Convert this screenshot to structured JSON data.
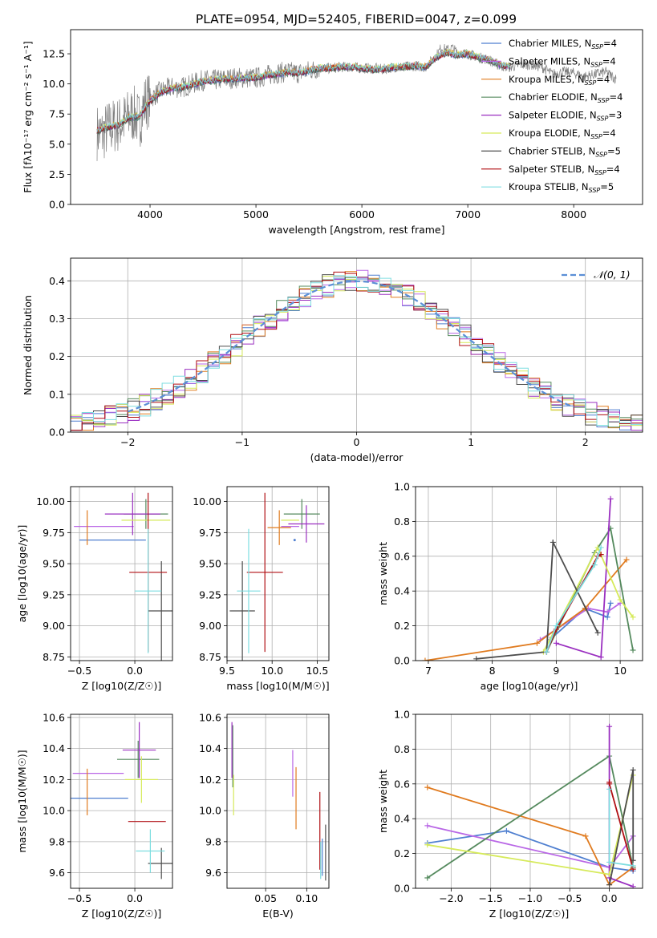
{
  "figure_title": "PLATE=0954, MJD=52405, FIBERID=0047, z=0.099",
  "model_colors": [
    "#4f7fd0",
    "#b967e6",
    "#e07b1f",
    "#558a5e",
    "#9a2fc0",
    "#d6ea5a",
    "#4d4d4d",
    "#b00f14",
    "#7ddde0"
  ],
  "chart_data": [
    {
      "id": "spectrum",
      "type": "line",
      "title": "PLATE=0954, MJD=52405, FIBERID=0047, z=0.099",
      "xlabel": "wavelength [Angstrom, rest frame]",
      "ylabel": "Flux [fλ10⁻¹⁷ erg cm⁻² s⁻¹ A⁻¹]",
      "xlim": [
        3250,
        8650
      ],
      "ylim": [
        0,
        14.5
      ],
      "xticks": [
        4000,
        5000,
        6000,
        7000,
        8000
      ],
      "yticks": [
        0.0,
        2.5,
        5.0,
        7.5,
        10.0,
        12.5
      ],
      "data_curve": {
        "name": "data",
        "color": "#808080",
        "x": [
          3500,
          3550,
          3600,
          3650,
          3700,
          3750,
          3800,
          3850,
          3900,
          3950,
          4000,
          4100,
          4200,
          4300,
          4400,
          4500,
          4600,
          4700,
          4800,
          4900,
          5000,
          5100,
          5200,
          5300,
          5400,
          5500,
          5600,
          5700,
          5800,
          5900,
          6000,
          6100,
          6200,
          6300,
          6400,
          6500,
          6600,
          6700,
          6750,
          6800,
          6850,
          6900,
          7000,
          7100,
          7200,
          7300,
          7400,
          7500,
          7600,
          7700,
          7800,
          7900,
          8000,
          8100,
          8200,
          8300,
          8400
        ],
        "y": [
          6.0,
          5.8,
          6.3,
          6.5,
          6.6,
          6.9,
          7.3,
          7.5,
          6.9,
          8.4,
          8.8,
          9.4,
          9.7,
          9.7,
          10.0,
          10.3,
          10.3,
          10.4,
          10.5,
          10.5,
          10.5,
          10.7,
          10.9,
          11.0,
          10.9,
          11.1,
          11.3,
          11.3,
          11.4,
          11.4,
          11.3,
          11.3,
          11.2,
          11.4,
          11.4,
          11.5,
          11.4,
          12.3,
          13.0,
          12.8,
          13.0,
          12.6,
          12.5,
          12.2,
          12.0,
          11.5,
          11.4,
          11.6,
          11.6,
          11.4,
          10.8,
          11.0,
          10.9,
          10.6,
          10.8,
          11.0,
          10.4
        ]
      },
      "model_curve": {
        "x": [
          3500,
          3600,
          3700,
          3800,
          3900,
          4000,
          4100,
          4200,
          4300,
          4400,
          4500,
          4600,
          4700,
          4800,
          4900,
          5000,
          5100,
          5200,
          5300,
          5400,
          5500,
          5600,
          5700,
          5800,
          5900,
          6000,
          6100,
          6200,
          6300,
          6400,
          6500,
          6600,
          6700,
          6800,
          6900,
          7000,
          7100,
          7200,
          7300,
          7400
        ],
        "y": [
          6.1,
          6.4,
          6.6,
          7.2,
          7.3,
          8.6,
          9.3,
          9.6,
          9.7,
          9.9,
          10.2,
          10.3,
          10.4,
          10.4,
          10.5,
          10.5,
          10.7,
          10.8,
          11.0,
          10.9,
          11.1,
          11.3,
          11.3,
          11.4,
          11.4,
          11.3,
          11.2,
          11.2,
          11.4,
          11.4,
          11.5,
          11.4,
          12.2,
          12.6,
          12.4,
          12.5,
          12.2,
          12.0,
          11.6,
          11.4
        ]
      },
      "series": [
        {
          "name": "Chabrier MILES, N",
          "sub": "SSP",
          "suffix": "=4"
        },
        {
          "name": "Salpeter MILES, N",
          "sub": "SSP",
          "suffix": "=4"
        },
        {
          "name": "Kroupa MILES, N",
          "sub": "SSP",
          "suffix": "=4"
        },
        {
          "name": "Chabrier ELODIE, N",
          "sub": "SSP",
          "suffix": "=4"
        },
        {
          "name": "Salpeter ELODIE, N",
          "sub": "SSP",
          "suffix": "=3"
        },
        {
          "name": "Kroupa ELODIE, N",
          "sub": "SSP",
          "suffix": "=4"
        },
        {
          "name": "Chabrier STELIB, N",
          "sub": "SSP",
          "suffix": "=5"
        },
        {
          "name": "Salpeter STELIB, N",
          "sub": "SSP",
          "suffix": "=4"
        },
        {
          "name": "Kroupa STELIB, N",
          "sub": "SSP",
          "suffix": "=5"
        }
      ],
      "legend": "right",
      "grid": false
    },
    {
      "id": "residuals",
      "type": "histogram",
      "xlabel": "(data-model)/error",
      "ylabel": "Normed distribution",
      "xlim": [
        -2.5,
        2.5
      ],
      "ylim": [
        0,
        0.46
      ],
      "xticks": [
        -2,
        -1,
        0,
        1,
        2
      ],
      "yticks": [
        0.0,
        0.1,
        0.2,
        0.3,
        0.4
      ],
      "bin_edges": [
        -2.5,
        -2.4,
        -2.3,
        -2.2,
        -2.1,
        -2.0,
        -1.9,
        -1.8,
        -1.7,
        -1.6,
        -1.5,
        -1.4,
        -1.3,
        -1.2,
        -1.1,
        -1.0,
        -0.9,
        -0.8,
        -0.7,
        -0.6,
        -0.5,
        -0.4,
        -0.3,
        -0.2,
        -0.1,
        0.0,
        0.1,
        0.2,
        0.3,
        0.4,
        0.5,
        0.6,
        0.7,
        0.8,
        0.9,
        1.0,
        1.1,
        1.2,
        1.3,
        1.4,
        1.5,
        1.6,
        1.7,
        1.8,
        1.9,
        2.0,
        2.1,
        2.2,
        2.3,
        2.4,
        2.5
      ],
      "gaussian": {
        "name": "𝒩(0, 1)",
        "color": "#5b8fd6",
        "mu": 0,
        "sigma": 1,
        "xlim": [
          -2.0,
          1.9
        ]
      },
      "legend": "top-right",
      "grid": true
    },
    {
      "id": "age_vs_Z",
      "type": "errorbar",
      "xlabel": "Z [log10(Z/Z☉)]",
      "ylabel": "age  [log10(age/yr)]",
      "xlim": [
        -0.58,
        0.34
      ],
      "ylim": [
        8.72,
        10.12
      ],
      "xticks": [
        -0.5,
        0.0
      ],
      "yticks": [
        8.75,
        9.0,
        9.25,
        9.5,
        9.75,
        10.0
      ],
      "points": [
        {
          "x": -0.2,
          "xerr": 0.3,
          "y": 9.69,
          "yerr": 0.0
        },
        {
          "x": -0.28,
          "xerr": 0.27,
          "y": 9.8,
          "yerr": 0.0
        },
        {
          "x": -0.43,
          "xerr": 0.0,
          "y": 9.79,
          "yerr": 0.14
        },
        {
          "x": 0.1,
          "xerr": 0.2,
          "y": 9.9,
          "yerr": 0.12
        },
        {
          "x": -0.02,
          "xerr": 0.25,
          "y": 9.9,
          "yerr": 0.17
        },
        {
          "x": 0.1,
          "xerr": 0.22,
          "y": 9.85,
          "yerr": 0.0
        },
        {
          "x": 0.24,
          "xerr": 0.12,
          "y": 9.12,
          "yerr": 0.4
        },
        {
          "x": 0.12,
          "xerr": 0.17,
          "y": 9.43,
          "yerr": 0.64
        },
        {
          "x": 0.12,
          "xerr": 0.12,
          "y": 9.28,
          "yerr": 0.5
        }
      ],
      "grid": true
    },
    {
      "id": "age_vs_mass",
      "type": "errorbar",
      "xlabel": "mass [log10(M/M☉)]",
      "ylabel": "",
      "xlim": [
        9.5,
        10.63
      ],
      "ylim": [
        8.72,
        10.12
      ],
      "xticks": [
        9.5,
        10.0,
        10.5
      ],
      "yticks": [
        8.75,
        9.0,
        9.25,
        9.5,
        9.75,
        10.0
      ],
      "points": [
        {
          "x": 10.25,
          "xerr": 0.0,
          "y": 9.69,
          "yerr": 0.0
        },
        {
          "x": 10.2,
          "xerr": 0.1,
          "y": 9.8,
          "yerr": 0.0
        },
        {
          "x": 10.08,
          "xerr": 0.13,
          "y": 9.79,
          "yerr": 0.14
        },
        {
          "x": 10.33,
          "xerr": 0.2,
          "y": 9.9,
          "yerr": 0.12
        },
        {
          "x": 10.38,
          "xerr": 0.2,
          "y": 9.82,
          "yerr": 0.15
        },
        {
          "x": 10.2,
          "xerr": 0.1,
          "y": 9.85,
          "yerr": 0.0
        },
        {
          "x": 9.67,
          "xerr": 0.14,
          "y": 9.12,
          "yerr": 0.4
        },
        {
          "x": 9.92,
          "xerr": 0.2,
          "y": 9.43,
          "yerr": 0.64
        },
        {
          "x": 9.74,
          "xerr": 0.13,
          "y": 9.28,
          "yerr": 0.5
        }
      ],
      "grid": true
    },
    {
      "id": "mass_weight_vs_age",
      "type": "line",
      "xlabel": "age  [log10(age/yr)]",
      "ylabel": "mass weight",
      "xlim": [
        6.8,
        10.35
      ],
      "ylim": [
        0,
        1.0
      ],
      "xticks": [
        7,
        8,
        9,
        10
      ],
      "yticks": [
        0.0,
        0.2,
        0.4,
        0.6,
        0.8,
        1.0
      ],
      "series": [
        {
          "x": [
            8.9,
            9.45,
            9.8,
            9.85
          ],
          "y": [
            0.12,
            0.3,
            0.25,
            0.33
          ]
        },
        {
          "x": [
            8.75,
            9.5,
            9.8,
            10.0
          ],
          "y": [
            0.12,
            0.3,
            0.28,
            0.33
          ]
        },
        {
          "x": [
            6.95,
            8.7,
            9.45,
            10.1
          ],
          "y": [
            0.0,
            0.1,
            0.3,
            0.58
          ]
        },
        {
          "x": [
            8.85,
            9.6,
            9.85,
            10.2
          ],
          "y": [
            0.05,
            0.62,
            0.76,
            0.06
          ]
        },
        {
          "x": [
            9.0,
            9.7,
            9.85
          ],
          "y": [
            0.1,
            0.02,
            0.93
          ]
        },
        {
          "x": [
            8.8,
            9.65,
            10.0,
            10.2
          ],
          "y": [
            0.05,
            0.65,
            0.35,
            0.25
          ]
        },
        {
          "x": [
            7.75,
            8.85,
            8.95,
            9.65
          ],
          "y": [
            0.01,
            0.05,
            0.68,
            0.16
          ]
        },
        {
          "x": [
            8.85,
            9.0,
            9.65,
            9.7
          ],
          "y": [
            0.05,
            0.18,
            0.6,
            0.61
          ]
        },
        {
          "x": [
            8.85,
            9.0,
            9.6,
            9.7
          ],
          "y": [
            0.05,
            0.2,
            0.55,
            0.65
          ]
        }
      ],
      "grid": true
    },
    {
      "id": "mass_vs_Z",
      "type": "errorbar",
      "xlabel": "Z [log10(Z/Z☉)]",
      "ylabel": "mass [log10(M/M☉)]",
      "xlim": [
        -0.58,
        0.34
      ],
      "ylim": [
        9.5,
        10.62
      ],
      "xticks": [
        -0.5,
        0.0
      ],
      "yticks": [
        9.6,
        9.8,
        10.0,
        10.2,
        10.4,
        10.6
      ],
      "points": [
        {
          "x": -0.35,
          "xerr": 0.29,
          "y": 10.08,
          "yerr": 0.0
        },
        {
          "x": -0.33,
          "xerr": 0.23,
          "y": 10.24,
          "yerr": 0.0
        },
        {
          "x": -0.43,
          "xerr": 0.0,
          "y": 10.12,
          "yerr": 0.15
        },
        {
          "x": 0.03,
          "xerr": 0.19,
          "y": 10.33,
          "yerr": 0.12
        },
        {
          "x": 0.04,
          "xerr": 0.15,
          "y": 10.39,
          "yerr": 0.18
        },
        {
          "x": 0.06,
          "xerr": 0.15,
          "y": 10.2,
          "yerr": 0.15
        },
        {
          "x": 0.24,
          "xerr": 0.12,
          "y": 9.66,
          "yerr": 0.1
        },
        {
          "x": 0.11,
          "xerr": 0.17,
          "y": 9.93,
          "yerr": 0.0
        },
        {
          "x": 0.14,
          "xerr": 0.13,
          "y": 9.74,
          "yerr": 0.14
        }
      ],
      "grid": true
    },
    {
      "id": "mass_vs_EBV",
      "type": "errorbar",
      "xlabel": "E(B-V)",
      "ylabel": "",
      "xlim": [
        0.003,
        0.127
      ],
      "ylim": [
        9.5,
        10.62
      ],
      "xticks": [
        0.05,
        0.1
      ],
      "yticks": [
        9.6,
        9.8,
        10.0,
        10.2,
        10.4,
        10.6
      ],
      "points": [
        {
          "x": 0.119,
          "xerr": 0.0,
          "y": 9.7,
          "yerr": 0.12
        },
        {
          "x": 0.083,
          "xerr": 0.0,
          "y": 10.24,
          "yerr": 0.15
        },
        {
          "x": 0.087,
          "xerr": 0.0,
          "y": 10.08,
          "yerr": 0.2
        },
        {
          "x": 0.01,
          "xerr": 0.0,
          "y": 10.35,
          "yerr": 0.2
        },
        {
          "x": 0.009,
          "xerr": 0.0,
          "y": 10.39,
          "yerr": 0.18
        },
        {
          "x": 0.011,
          "xerr": 0.0,
          "y": 10.1,
          "yerr": 0.13
        },
        {
          "x": 0.123,
          "xerr": 0.0,
          "y": 9.73,
          "yerr": 0.18
        },
        {
          "x": 0.116,
          "xerr": 0.0,
          "y": 9.87,
          "yerr": 0.25
        },
        {
          "x": 0.117,
          "xerr": 0.0,
          "y": 9.68,
          "yerr": 0.12
        }
      ],
      "grid": true
    },
    {
      "id": "mass_weight_vs_Z",
      "type": "line",
      "xlabel": "Z [log10(Z/Z☉)]",
      "ylabel": "mass weight",
      "xlim": [
        -2.45,
        0.42
      ],
      "ylim": [
        0,
        1.0
      ],
      "xticks": [
        -2.0,
        -1.5,
        -1.0,
        -0.5,
        0.0
      ],
      "yticks": [
        0.0,
        0.2,
        0.4,
        0.6,
        0.8,
        1.0
      ],
      "series": [
        {
          "x": [
            -2.3,
            -1.3,
            0.0,
            0.3
          ],
          "y": [
            0.26,
            0.33,
            0.12,
            0.1
          ]
        },
        {
          "x": [
            -2.3,
            0.0,
            0.3
          ],
          "y": [
            0.36,
            0.12,
            0.3
          ]
        },
        {
          "x": [
            -2.3,
            -0.3,
            0.0,
            0.3
          ],
          "y": [
            0.58,
            0.3,
            0.02,
            0.12
          ]
        },
        {
          "x": [
            -2.3,
            0.0,
            0.3
          ],
          "y": [
            0.06,
            0.76,
            0.12
          ]
        },
        {
          "x": [
            0.0,
            0.0,
            0.3
          ],
          "y": [
            0.93,
            0.06,
            0.01
          ]
        },
        {
          "x": [
            -2.3,
            0.0,
            0.3
          ],
          "y": [
            0.25,
            0.08,
            0.65
          ]
        },
        {
          "x": [
            0.0,
            0.3,
            0.3
          ],
          "y": [
            0.02,
            0.68,
            0.16
          ]
        },
        {
          "x": [
            0.0,
            0.0,
            0.3
          ],
          "y": [
            0.61,
            0.6,
            0.11
          ]
        },
        {
          "x": [
            0.0,
            0.0,
            0.3
          ],
          "y": [
            0.57,
            0.15,
            0.13
          ]
        }
      ],
      "grid": true
    }
  ]
}
